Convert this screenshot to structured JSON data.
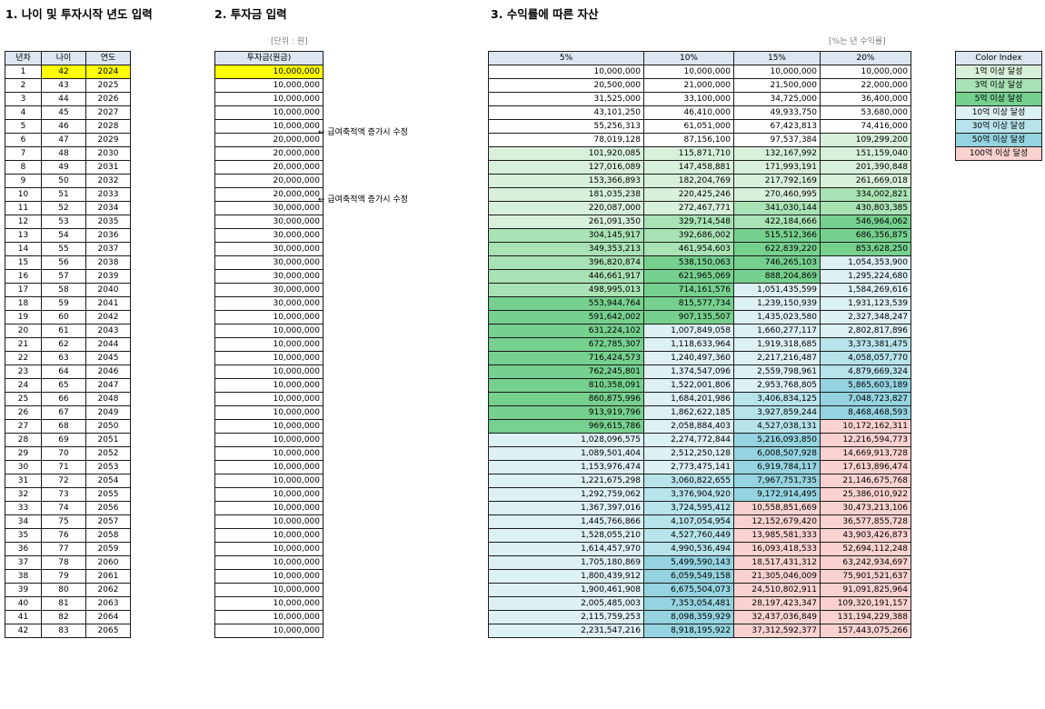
{
  "sections": {
    "s1": "1. 나이 및 투자시작 년도 입력",
    "s2": "2. 투자금 입력",
    "s3": "3. 수익률에 따른 자산"
  },
  "units": {
    "investment": "[단위 : 원]",
    "rate": "[%는 년 수익률]"
  },
  "table1": {
    "headers": [
      "년차",
      "나이",
      "연도"
    ],
    "start_age": 42,
    "start_year": 2024,
    "years": 42
  },
  "table2": {
    "header": "투자금(원금)",
    "amounts": [
      "10,000,000",
      "10,000,000",
      "10,000,000",
      "10,000,000",
      "10,000,000",
      "20,000,000",
      "20,000,000",
      "20,000,000",
      "20,000,000",
      "20,000,000",
      "30,000,000",
      "30,000,000",
      "30,000,000",
      "30,000,000",
      "30,000,000",
      "30,000,000",
      "30,000,000",
      "30,000,000",
      "10,000,000",
      "10,000,000",
      "10,000,000",
      "10,000,000",
      "10,000,000",
      "10,000,000",
      "10,000,000",
      "10,000,000",
      "10,000,000",
      "10,000,000",
      "10,000,000",
      "10,000,000",
      "10,000,000",
      "10,000,000",
      "10,000,000",
      "10,000,000",
      "10,000,000",
      "10,000,000",
      "10,000,000",
      "10,000,000",
      "10,000,000",
      "10,000,000",
      "10,000,000",
      "10,000,000"
    ]
  },
  "notes": [
    {
      "row": 6,
      "text": "← 급여축적액 증가시 수정"
    },
    {
      "row": 11,
      "text": "← 급여축적액 증가시 수정"
    }
  ],
  "table3": {
    "headers": [
      "5%",
      "10%",
      "15%",
      "20%"
    ],
    "columns": [
      [
        "10,000,000",
        "20,500,000",
        "31,525,000",
        "43,101,250",
        "55,256,313",
        "78,019,128",
        "101,920,085",
        "127,016,089",
        "153,366,893",
        "181,035,238",
        "220,087,000",
        "261,091,350",
        "304,145,917",
        "349,353,213",
        "396,820,874",
        "446,661,917",
        "498,995,013",
        "553,944,764",
        "591,642,002",
        "631,224,102",
        "672,785,307",
        "716,424,573",
        "762,245,801",
        "810,358,091",
        "860,875,996",
        "913,919,796",
        "969,615,786",
        "1,028,096,575",
        "1,089,501,404",
        "1,153,976,474",
        "1,221,675,298",
        "1,292,759,062",
        "1,367,397,016",
        "1,445,766,866",
        "1,528,055,210",
        "1,614,457,970",
        "1,705,180,869",
        "1,800,439,912",
        "1,900,461,908",
        "2,005,485,003",
        "2,115,759,253",
        "2,231,547,216"
      ],
      [
        "10,000,000",
        "21,000,000",
        "33,100,000",
        "46,410,000",
        "61,051,000",
        "87,156,100",
        "115,871,710",
        "147,458,881",
        "182,204,769",
        "220,425,246",
        "272,467,771",
        "329,714,548",
        "392,686,002",
        "461,954,603",
        "538,150,063",
        "621,965,069",
        "714,161,576",
        "815,577,734",
        "907,135,507",
        "1,007,849,058",
        "1,118,633,964",
        "1,240,497,360",
        "1,374,547,096",
        "1,522,001,806",
        "1,684,201,986",
        "1,862,622,185",
        "2,058,884,403",
        "2,274,772,844",
        "2,512,250,128",
        "2,773,475,141",
        "3,060,822,655",
        "3,376,904,920",
        "3,724,595,412",
        "4,107,054,954",
        "4,527,760,449",
        "4,990,536,494",
        "5,499,590,143",
        "6,059,549,158",
        "6,675,504,073",
        "7,353,054,481",
        "8,098,359,929",
        "8,918,195,922"
      ],
      [
        "10,000,000",
        "21,500,000",
        "34,725,000",
        "49,933,750",
        "67,423,813",
        "97,537,384",
        "132,167,992",
        "171,993,191",
        "217,792,169",
        "270,460,995",
        "341,030,144",
        "422,184,666",
        "515,512,366",
        "622,839,220",
        "746,265,103",
        "888,204,869",
        "1,051,435,599",
        "1,239,150,939",
        "1,435,023,580",
        "1,660,277,117",
        "1,919,318,685",
        "2,217,216,487",
        "2,559,798,961",
        "2,953,768,805",
        "3,406,834,125",
        "3,927,859,244",
        "4,527,038,131",
        "5,216,093,850",
        "6,008,507,928",
        "6,919,784,117",
        "7,967,751,735",
        "9,172,914,495",
        "10,558,851,669",
        "12,152,679,420",
        "13,985,581,333",
        "16,093,418,533",
        "18,517,431,312",
        "21,305,046,009",
        "24,510,802,911",
        "28,197,423,347",
        "32,437,036,849",
        "37,312,592,377"
      ],
      [
        "10,000,000",
        "22,000,000",
        "36,400,000",
        "53,680,000",
        "74,416,000",
        "109,299,200",
        "151,159,040",
        "201,390,848",
        "261,669,018",
        "334,002,821",
        "430,803,385",
        "546,964,062",
        "686,356,875",
        "853,628,250",
        "1,054,353,900",
        "1,295,224,680",
        "1,584,269,616",
        "1,931,123,539",
        "2,327,348,247",
        "2,802,817,896",
        "3,373,381,475",
        "4,058,057,770",
        "4,879,669,324",
        "5,865,603,189",
        "7,048,723,827",
        "8,468,468,593",
        "10,172,162,311",
        "12,216,594,773",
        "14,669,913,728",
        "17,613,896,474",
        "21,146,675,768",
        "25,386,010,922",
        "30,473,213,106",
        "36,577,855,728",
        "43,903,426,873",
        "52,694,112,248",
        "63,242,934,697",
        "75,901,521,637",
        "91,091,825,964",
        "109,320,191,157",
        "131,194,229,388",
        "157,443,075,266"
      ]
    ]
  },
  "color_index": {
    "header": "Color Index",
    "levels": [
      {
        "label": "1억 이상 달성",
        "threshold": 100000000,
        "color": "#d8f0da"
      },
      {
        "label": "3억 이상 달성",
        "threshold": 300000000,
        "color": "#a9e2b4"
      },
      {
        "label": "5억 이상 달성",
        "threshold": 500000000,
        "color": "#76d08e"
      },
      {
        "label": "10억 이상 달성",
        "threshold": 1000000000,
        "color": "#ddf0f3"
      },
      {
        "label": "30억 이상 달성",
        "threshold": 3000000000,
        "color": "#b7e3ea"
      },
      {
        "label": "50억 이상 달성",
        "threshold": 5000000000,
        "color": "#94d3df"
      },
      {
        "label": "100억 이상 달성",
        "threshold": 10000000000,
        "color": "#f9d2cf"
      }
    ]
  },
  "colors": {
    "header_fill": "#dce6f1",
    "highlight": "#ffff00",
    "border": "#1a1a1a"
  }
}
